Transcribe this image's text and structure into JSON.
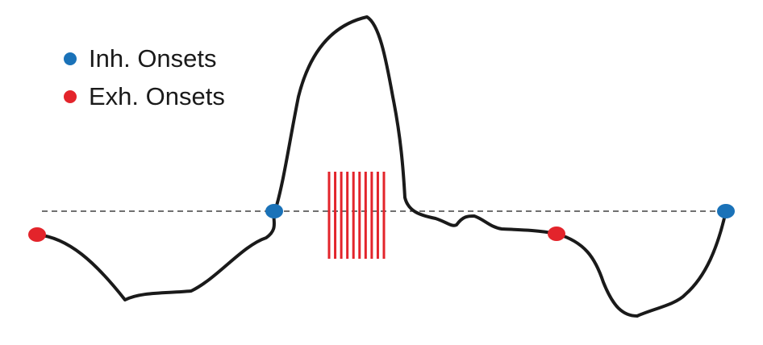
{
  "legend": {
    "items": [
      {
        "label": "Inh. Onsets",
        "color": "#1a72b8"
      },
      {
        "label": "Exh. Onsets",
        "color": "#e3242b"
      }
    ]
  },
  "colors": {
    "trace": "#1a1a1a",
    "baseline": "#1a1a1a",
    "stim_bars": "#e3242b",
    "inhalation_onset": "#1a72b8",
    "exhalation_onset": "#e3242b"
  },
  "stimulus": {
    "bar_count": 10
  },
  "onsets": [
    "exhalation",
    "inhalation",
    "exhalation",
    "inhalation"
  ]
}
